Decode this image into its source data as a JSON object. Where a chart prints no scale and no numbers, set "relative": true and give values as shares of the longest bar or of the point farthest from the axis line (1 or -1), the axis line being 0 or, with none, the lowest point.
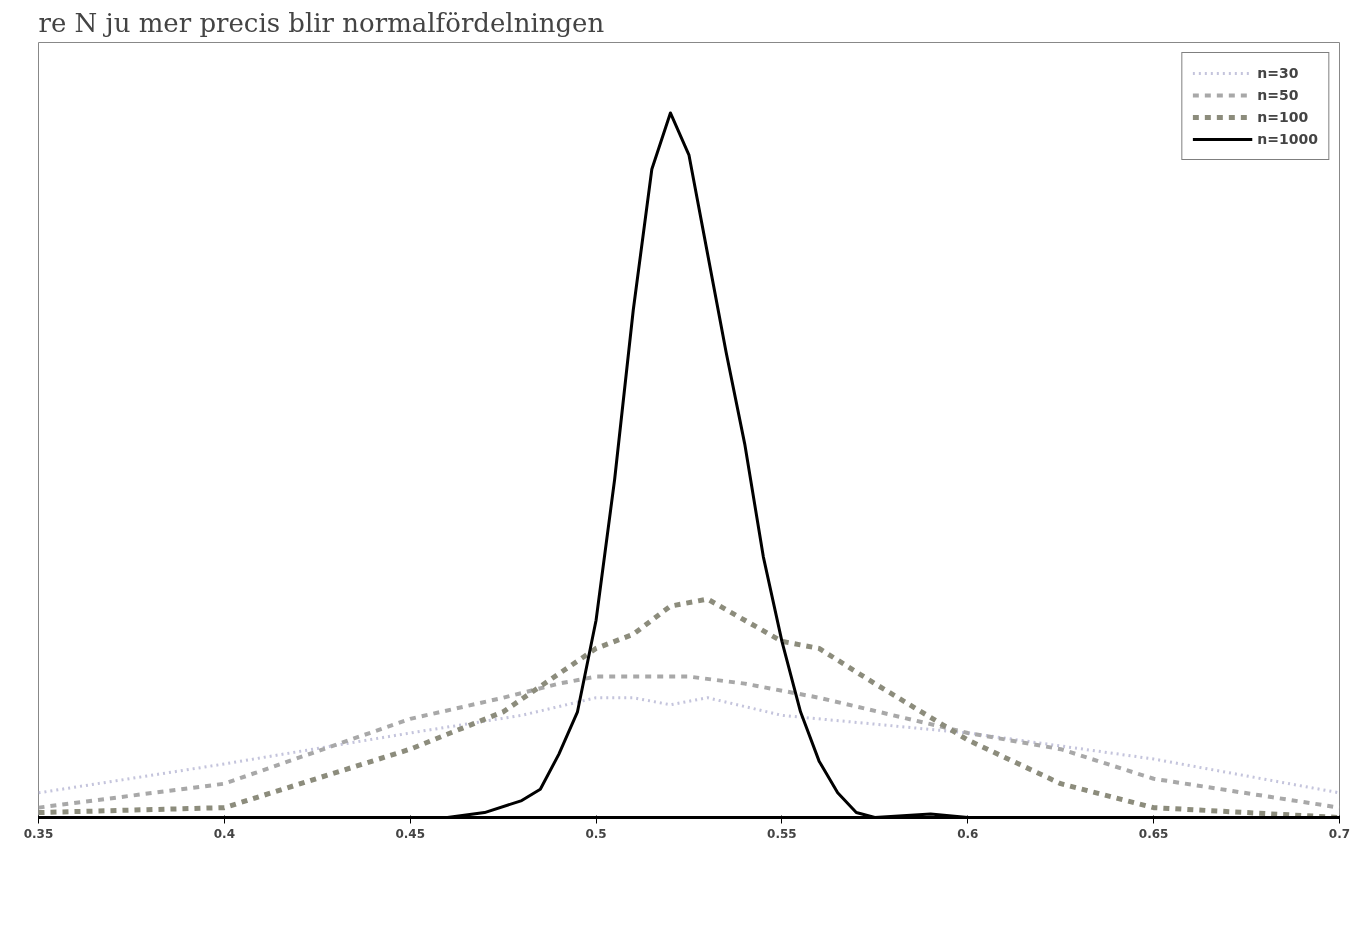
{
  "chart_data": {
    "type": "line",
    "title": "re N ju mer precis blir normalfördelningen",
    "relative": true,
    "xlim": [
      0.35,
      0.7
    ],
    "xticks": [
      {
        "value": 0.35,
        "label": "0.35"
      },
      {
        "value": 0.4,
        "label": "0.4"
      },
      {
        "value": 0.45,
        "label": "0.45"
      },
      {
        "value": 0.5,
        "label": "0.5"
      },
      {
        "value": 0.55,
        "label": "0.55"
      },
      {
        "value": 0.6,
        "label": "0.6"
      },
      {
        "value": 0.65,
        "label": "0.65"
      },
      {
        "value": 0.7,
        "label": "0.7"
      }
    ],
    "grid": false,
    "legend": "top right",
    "series": [
      {
        "name": "n=30",
        "color": "#c4c4dc",
        "line_style": "dotted",
        "x": [
          0.35,
          0.4,
          0.45,
          0.48,
          0.5,
          0.51,
          0.52,
          0.53,
          0.55,
          0.6,
          0.65,
          0.7
        ],
        "values": [
          0.035,
          0.076,
          0.12,
          0.145,
          0.17,
          0.17,
          0.16,
          0.17,
          0.145,
          0.12,
          0.083,
          0.035
        ]
      },
      {
        "name": "n=50",
        "color": "#a8a8a8",
        "line_style": "dashed",
        "x": [
          0.35,
          0.4,
          0.45,
          0.475,
          0.49,
          0.5,
          0.525,
          0.54,
          0.56,
          0.6,
          0.625,
          0.65,
          0.7
        ],
        "values": [
          0.014,
          0.048,
          0.14,
          0.17,
          0.19,
          0.2,
          0.2,
          0.19,
          0.17,
          0.12,
          0.097,
          0.055,
          0.014
        ]
      },
      {
        "name": "n=100",
        "color": "#8c8c7c",
        "line_style": "dashed",
        "x": [
          0.35,
          0.4,
          0.45,
          0.475,
          0.5,
          0.51,
          0.52,
          0.53,
          0.54,
          0.55,
          0.56,
          0.575,
          0.6,
          0.625,
          0.65,
          0.7
        ],
        "values": [
          0.007,
          0.014,
          0.097,
          0.15,
          0.24,
          0.26,
          0.3,
          0.31,
          0.28,
          0.25,
          0.24,
          0.19,
          0.11,
          0.048,
          0.014,
          0
        ]
      },
      {
        "name": "n=1000",
        "color": "#000000",
        "line_style": "solid",
        "x": [
          0.35,
          0.46,
          0.47,
          0.48,
          0.485,
          0.49,
          0.495,
          0.5,
          0.505,
          0.51,
          0.515,
          0.52,
          0.525,
          0.53,
          0.535,
          0.54,
          0.545,
          0.55,
          0.555,
          0.56,
          0.565,
          0.57,
          0.575,
          0.59,
          0.6,
          0.7
        ],
        "values": [
          0,
          0,
          0.007,
          0.024,
          0.04,
          0.09,
          0.15,
          0.28,
          0.48,
          0.72,
          0.92,
          1.0,
          0.94,
          0.8,
          0.66,
          0.53,
          0.37,
          0.25,
          0.15,
          0.08,
          0.035,
          0.007,
          0,
          0.005,
          0,
          0
        ]
      }
    ]
  }
}
